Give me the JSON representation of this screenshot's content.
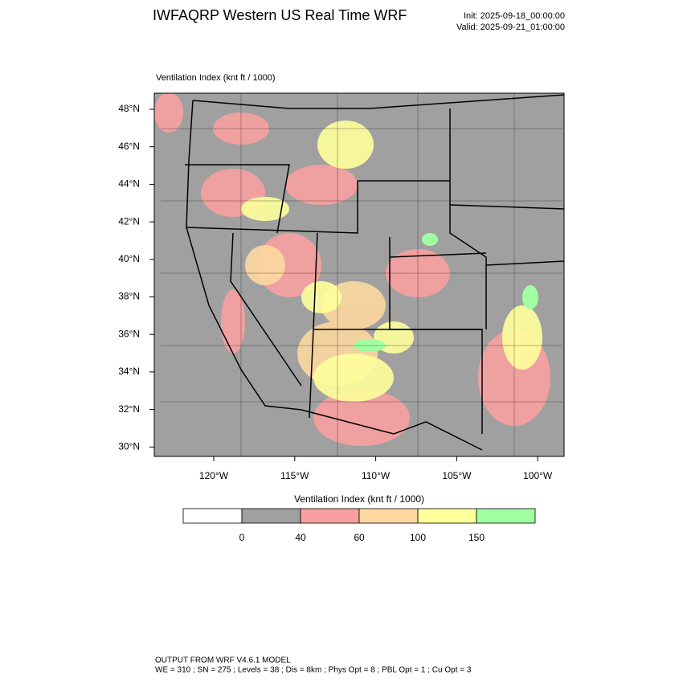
{
  "header": {
    "title": "IWFAQRP Western US Real Time WRF",
    "init": "Init: 2025-09-18_00:00:00",
    "valid": "Valid: 2025-09-21_01:00:00"
  },
  "plot": {
    "label": "Ventilation Index   (knt ft / 1000)",
    "lat_labels": [
      "48°N",
      "46°N",
      "44°N",
      "42°N",
      "40°N",
      "38°N",
      "36°N",
      "34°N",
      "32°N",
      "30°N"
    ],
    "lon_labels": [
      "120°W",
      "115°W",
      "110°W",
      "105°W",
      "100°W"
    ]
  },
  "colorbar": {
    "title": "Ventilation Index   (knt ft / 1000)",
    "colors": [
      "#ffffff",
      "#a0a0a0",
      "#f8a0a0",
      "#fcd8a0",
      "#ffff9c",
      "#a0ffa0"
    ],
    "tick_labels": [
      "0",
      "40",
      "60",
      "100",
      "150"
    ]
  },
  "footer": {
    "line1": "OUTPUT FROM WRF V4.6.1 MODEL",
    "line2": "WE = 310 ; SN = 275 ; Levels = 38 ; Dis = 8km ; Phys Opt = 8 ; PBL Opt = 1 ; Cu Opt = 3"
  }
}
